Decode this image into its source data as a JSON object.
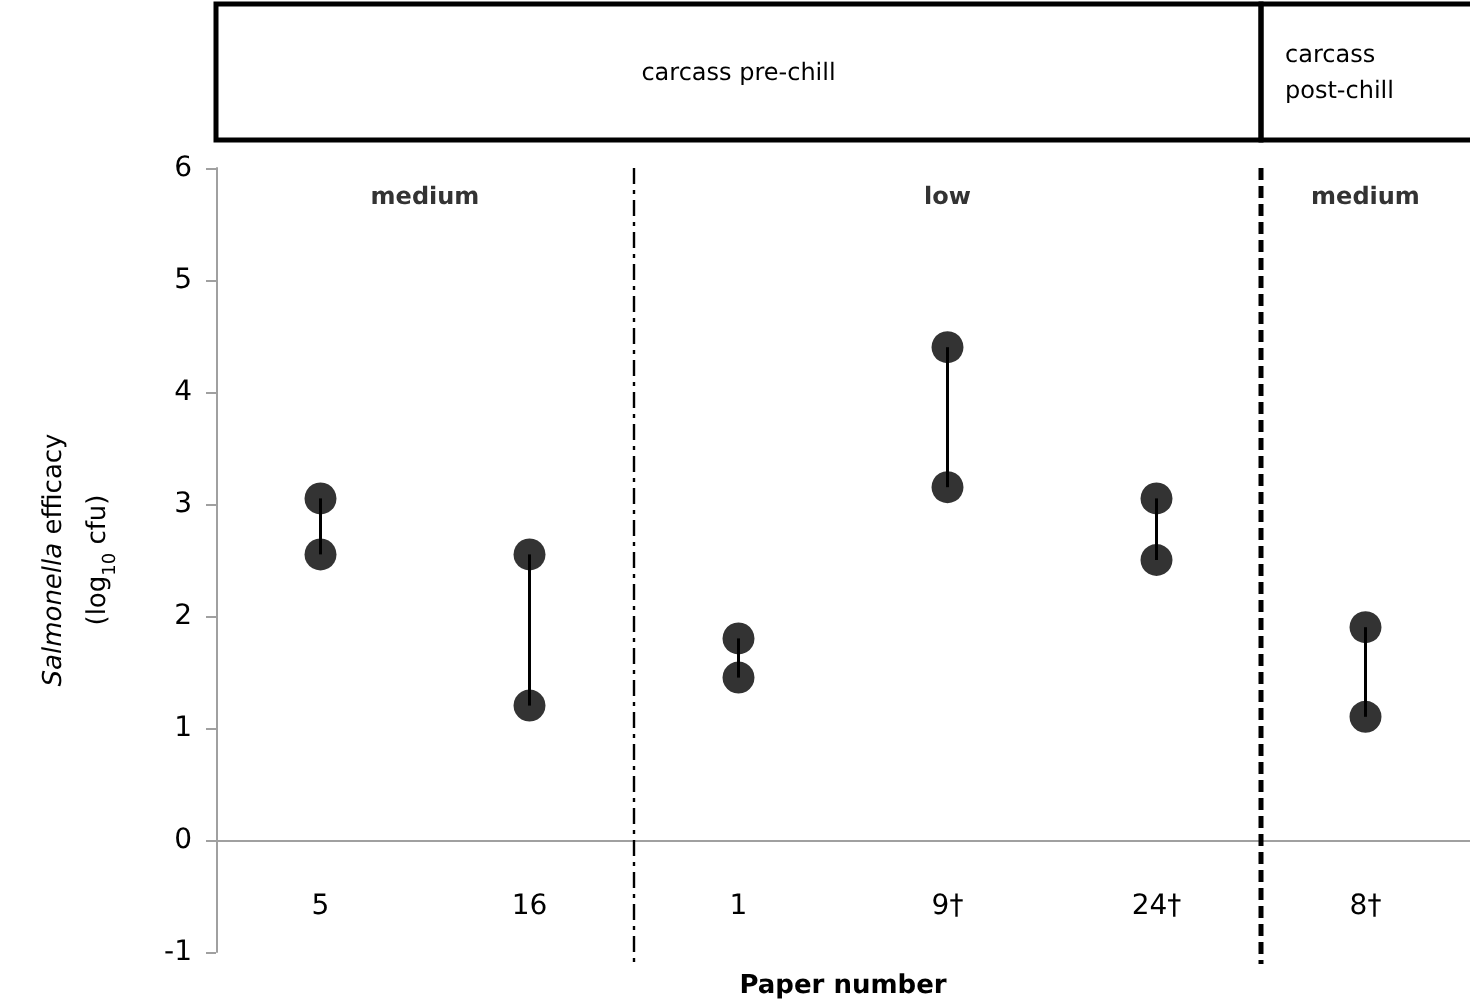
{
  "chart_data": {
    "type": "scatter",
    "xlabel": "Paper number",
    "ylabel": "Salmonella efficacy\n(log$_{10}$ cfu)",
    "categories": [
      "5",
      "16",
      "1",
      "9†",
      "24†",
      "8†"
    ],
    "series": [
      {
        "color": "#000000",
        "values": [
          3.05,
          2.55,
          1.8,
          4.4,
          3.05,
          1.9
        ]
      },
      {
        "color": "#000000",
        "values": [
          2.55,
          1.2,
          1.45,
          3.15,
          2.5,
          1.1
        ]
      }
    ],
    "ylim": [
      -1,
      6
    ],
    "yticks": [
      -1,
      0,
      1,
      2,
      3,
      4,
      5,
      6
    ],
    "grid": false,
    "marker": "circle",
    "ref_lines": [
      {
        "axis": "x",
        "value": "1",
        "line_style": "dotted"
      },
      {
        "axis": "x",
        "value": "8†",
        "line_style": "dashed"
      }
    ],
    "annotations": [
      "carcass pre-chill",
      "carcass post-chill",
      "medium",
      "low",
      "medium"
    ]
  }
}
